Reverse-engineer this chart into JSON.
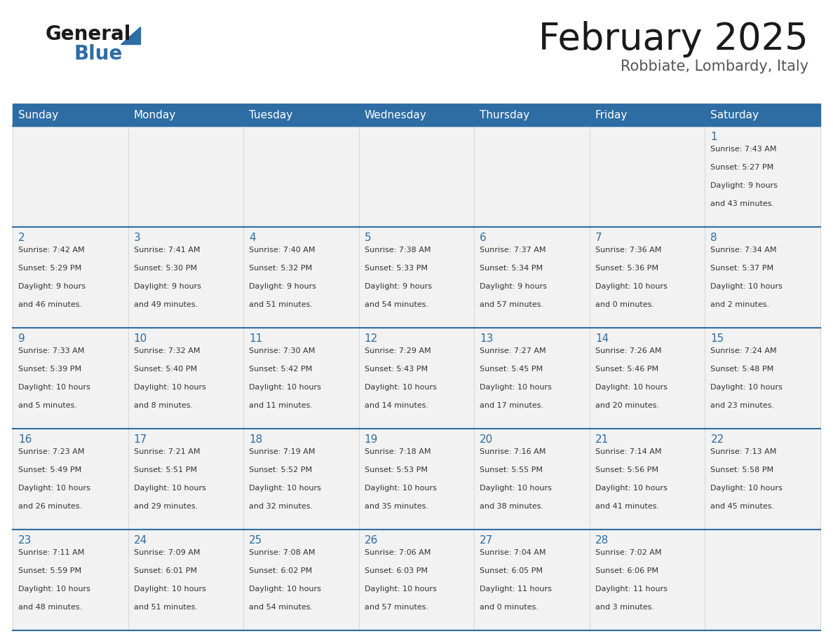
{
  "title": "February 2025",
  "subtitle": "Robbiate, Lombardy, Italy",
  "header_color": "#2E6DA4",
  "header_text_color": "#FFFFFF",
  "cell_bg_color": "#F2F2F2",
  "cell_bg_alt": "#FFFFFF",
  "border_color": "#2E6DA4",
  "day_number_color": "#2E6DA4",
  "info_text_color": "#333333",
  "background_color": "#FFFFFF",
  "days_of_week": [
    "Sunday",
    "Monday",
    "Tuesday",
    "Wednesday",
    "Thursday",
    "Friday",
    "Saturday"
  ],
  "calendar_data": [
    [
      null,
      null,
      null,
      null,
      null,
      null,
      {
        "day": "1",
        "sunrise": "7:43 AM",
        "sunset": "5:27 PM",
        "daylight_hours": "9",
        "daylight_minutes": "43"
      }
    ],
    [
      {
        "day": "2",
        "sunrise": "7:42 AM",
        "sunset": "5:29 PM",
        "daylight_hours": "9",
        "daylight_minutes": "46"
      },
      {
        "day": "3",
        "sunrise": "7:41 AM",
        "sunset": "5:30 PM",
        "daylight_hours": "9",
        "daylight_minutes": "49"
      },
      {
        "day": "4",
        "sunrise": "7:40 AM",
        "sunset": "5:32 PM",
        "daylight_hours": "9",
        "daylight_minutes": "51"
      },
      {
        "day": "5",
        "sunrise": "7:38 AM",
        "sunset": "5:33 PM",
        "daylight_hours": "9",
        "daylight_minutes": "54"
      },
      {
        "day": "6",
        "sunrise": "7:37 AM",
        "sunset": "5:34 PM",
        "daylight_hours": "9",
        "daylight_minutes": "57"
      },
      {
        "day": "7",
        "sunrise": "7:36 AM",
        "sunset": "5:36 PM",
        "daylight_hours": "10",
        "daylight_minutes": "0"
      },
      {
        "day": "8",
        "sunrise": "7:34 AM",
        "sunset": "5:37 PM",
        "daylight_hours": "10",
        "daylight_minutes": "2"
      }
    ],
    [
      {
        "day": "9",
        "sunrise": "7:33 AM",
        "sunset": "5:39 PM",
        "daylight_hours": "10",
        "daylight_minutes": "5"
      },
      {
        "day": "10",
        "sunrise": "7:32 AM",
        "sunset": "5:40 PM",
        "daylight_hours": "10",
        "daylight_minutes": "8"
      },
      {
        "day": "11",
        "sunrise": "7:30 AM",
        "sunset": "5:42 PM",
        "daylight_hours": "10",
        "daylight_minutes": "11"
      },
      {
        "day": "12",
        "sunrise": "7:29 AM",
        "sunset": "5:43 PM",
        "daylight_hours": "10",
        "daylight_minutes": "14"
      },
      {
        "day": "13",
        "sunrise": "7:27 AM",
        "sunset": "5:45 PM",
        "daylight_hours": "10",
        "daylight_minutes": "17"
      },
      {
        "day": "14",
        "sunrise": "7:26 AM",
        "sunset": "5:46 PM",
        "daylight_hours": "10",
        "daylight_minutes": "20"
      },
      {
        "day": "15",
        "sunrise": "7:24 AM",
        "sunset": "5:48 PM",
        "daylight_hours": "10",
        "daylight_minutes": "23"
      }
    ],
    [
      {
        "day": "16",
        "sunrise": "7:23 AM",
        "sunset": "5:49 PM",
        "daylight_hours": "10",
        "daylight_minutes": "26"
      },
      {
        "day": "17",
        "sunrise": "7:21 AM",
        "sunset": "5:51 PM",
        "daylight_hours": "10",
        "daylight_minutes": "29"
      },
      {
        "day": "18",
        "sunrise": "7:19 AM",
        "sunset": "5:52 PM",
        "daylight_hours": "10",
        "daylight_minutes": "32"
      },
      {
        "day": "19",
        "sunrise": "7:18 AM",
        "sunset": "5:53 PM",
        "daylight_hours": "10",
        "daylight_minutes": "35"
      },
      {
        "day": "20",
        "sunrise": "7:16 AM",
        "sunset": "5:55 PM",
        "daylight_hours": "10",
        "daylight_minutes": "38"
      },
      {
        "day": "21",
        "sunrise": "7:14 AM",
        "sunset": "5:56 PM",
        "daylight_hours": "10",
        "daylight_minutes": "41"
      },
      {
        "day": "22",
        "sunrise": "7:13 AM",
        "sunset": "5:58 PM",
        "daylight_hours": "10",
        "daylight_minutes": "45"
      }
    ],
    [
      {
        "day": "23",
        "sunrise": "7:11 AM",
        "sunset": "5:59 PM",
        "daylight_hours": "10",
        "daylight_minutes": "48"
      },
      {
        "day": "24",
        "sunrise": "7:09 AM",
        "sunset": "6:01 PM",
        "daylight_hours": "10",
        "daylight_minutes": "51"
      },
      {
        "day": "25",
        "sunrise": "7:08 AM",
        "sunset": "6:02 PM",
        "daylight_hours": "10",
        "daylight_minutes": "54"
      },
      {
        "day": "26",
        "sunrise": "7:06 AM",
        "sunset": "6:03 PM",
        "daylight_hours": "10",
        "daylight_minutes": "57"
      },
      {
        "day": "27",
        "sunrise": "7:04 AM",
        "sunset": "6:05 PM",
        "daylight_hours": "11",
        "daylight_minutes": "0"
      },
      {
        "day": "28",
        "sunrise": "7:02 AM",
        "sunset": "6:06 PM",
        "daylight_hours": "11",
        "daylight_minutes": "3"
      },
      null
    ]
  ]
}
